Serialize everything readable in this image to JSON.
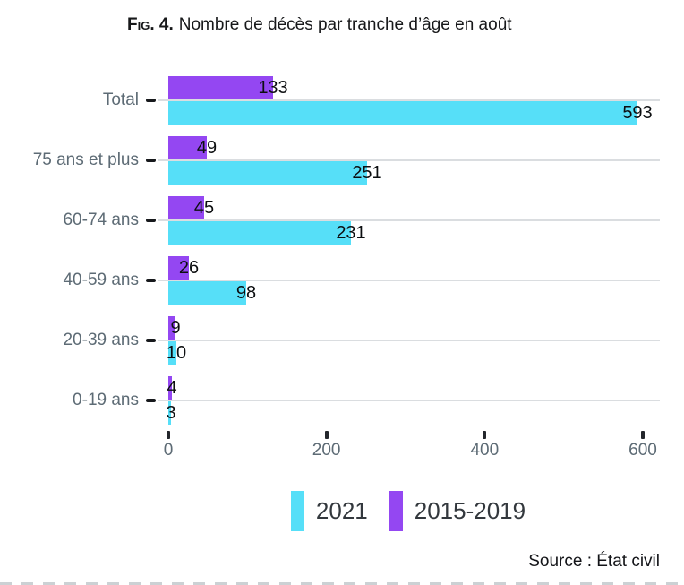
{
  "figure": {
    "title_prefix": "Fig. 4.",
    "title_text": "Nombre de décès par tranche d’âge en août",
    "source": "Source : État civil"
  },
  "chart_data": {
    "type": "bar",
    "orientation": "horizontal",
    "title": "Fig. 4. Nombre de décès par tranche d’âge en août",
    "categories": [
      "Total",
      "75 ans et plus",
      "60-74 ans",
      "40-59 ans",
      "20-39 ans",
      "0-19 ans"
    ],
    "series": [
      {
        "name": "2021",
        "color": "#56dff8",
        "values": [
          593,
          251,
          231,
          98,
          10,
          3
        ]
      },
      {
        "name": "2015-2019",
        "color": "#9447f2",
        "values": [
          133,
          49,
          45,
          26,
          9,
          4
        ]
      }
    ],
    "xlim": [
      0,
      600
    ],
    "x_ticks": [
      0,
      200,
      400,
      600
    ],
    "grid": "horizontal-category-lines",
    "legend_position": "bottom",
    "value_labels": true,
    "source": "Source : État civil",
    "colors": {
      "grid": "#dadde0",
      "axis_text": "#5d6b75",
      "value_text": "#0c0e10",
      "tick_mark": "#17191c"
    }
  }
}
